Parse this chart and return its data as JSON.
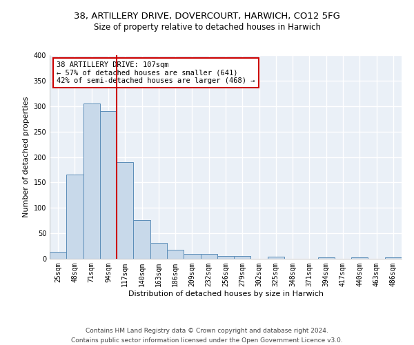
{
  "title_line1": "38, ARTILLERY DRIVE, DOVERCOURT, HARWICH, CO12 5FG",
  "title_line2": "Size of property relative to detached houses in Harwich",
  "xlabel": "Distribution of detached houses by size in Harwich",
  "ylabel": "Number of detached properties",
  "categories": [
    "25sqm",
    "48sqm",
    "71sqm",
    "94sqm",
    "117sqm",
    "140sqm",
    "163sqm",
    "186sqm",
    "209sqm",
    "232sqm",
    "256sqm",
    "279sqm",
    "302sqm",
    "325sqm",
    "348sqm",
    "371sqm",
    "394sqm",
    "417sqm",
    "440sqm",
    "463sqm",
    "486sqm"
  ],
  "values": [
    14,
    166,
    305,
    290,
    190,
    76,
    31,
    18,
    9,
    9,
    5,
    5,
    0,
    4,
    0,
    0,
    3,
    0,
    3,
    0,
    3
  ],
  "bar_color": "#c8d9ea",
  "bar_edge_color": "#5b8db8",
  "vline_color": "#cc0000",
  "vline_x": 3.5,
  "annotation_text": "38 ARTILLERY DRIVE: 107sqm\n← 57% of detached houses are smaller (641)\n42% of semi-detached houses are larger (468) →",
  "annotation_box_color": "#ffffff",
  "annotation_box_edge": "#cc0000",
  "ylim": [
    0,
    400
  ],
  "yticks": [
    0,
    50,
    100,
    150,
    200,
    250,
    300,
    350,
    400
  ],
  "background_color": "#eaf0f7",
  "grid_color": "#ffffff",
  "footer_line1": "Contains HM Land Registry data © Crown copyright and database right 2024.",
  "footer_line2": "Contains public sector information licensed under the Open Government Licence v3.0.",
  "title_fontsize": 9.5,
  "subtitle_fontsize": 8.5,
  "axis_label_fontsize": 8,
  "tick_fontsize": 7,
  "annotation_fontsize": 7.5,
  "footer_fontsize": 6.5
}
